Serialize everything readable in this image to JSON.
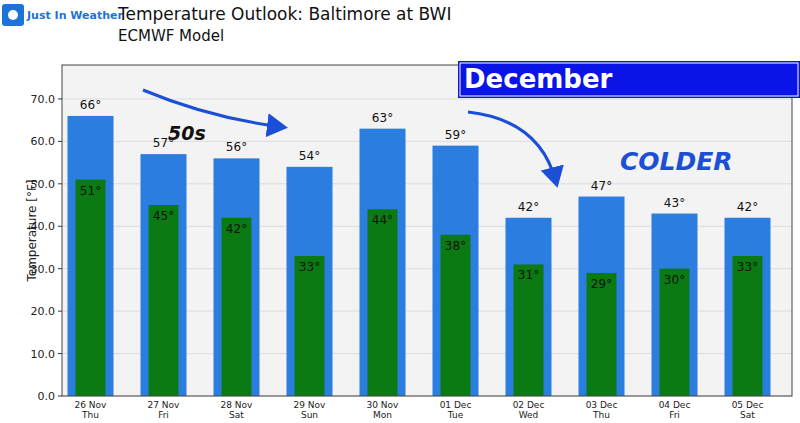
{
  "chart_data": {
    "type": "bar",
    "title": "Temperature Outlook: Baltimore at BWI",
    "subtitle": "ECMWF Model",
    "y_label": "Temperature [°F]",
    "annotations": [
      "Just In Weather",
      "December",
      "50s",
      "COLDER"
    ],
    "categories": [
      "26 Nov\nThu",
      "27 Nov\nFri",
      "28 Nov\nSat",
      "29 Nov\nSun",
      "30 Nov\nMon",
      "01 Dec\nTue",
      "02 Dec\nWed",
      "03 Dec\nThu",
      "04 Dec\nFri",
      "05 Dec\nSat"
    ],
    "series": [
      {
        "color": "#2b7de0",
        "values": [
          66,
          57,
          56,
          54,
          63,
          59,
          42,
          47,
          43,
          42
        ],
        "value_labels": [
          "66°",
          "57°",
          "56°",
          "54°",
          "63°",
          "59°",
          "42°",
          "47°",
          "43°",
          "42°"
        ]
      },
      {
        "color": "#0b7a12",
        "values": [
          51,
          45,
          42,
          33,
          44,
          38,
          31,
          29,
          30,
          33
        ],
        "value_labels": [
          "51°",
          "45°",
          "42°",
          "33°",
          "44°",
          "38°",
          "31°",
          "29°",
          "30°",
          "33°"
        ]
      }
    ],
    "ylim": [
      0,
      78
    ],
    "yticks": [
      {
        "value": 0,
        "label": "0.0"
      },
      {
        "value": 10,
        "label": "10.0"
      },
      {
        "value": 20,
        "label": "20.0"
      },
      {
        "value": 30,
        "label": "30.0"
      },
      {
        "value": 40,
        "label": "40.0"
      },
      {
        "value": 50,
        "label": "50.0"
      },
      {
        "value": 60,
        "label": "60.0"
      },
      {
        "value": 70,
        "label": "70.0"
      }
    ],
    "grid": true,
    "data_labels": true
  }
}
